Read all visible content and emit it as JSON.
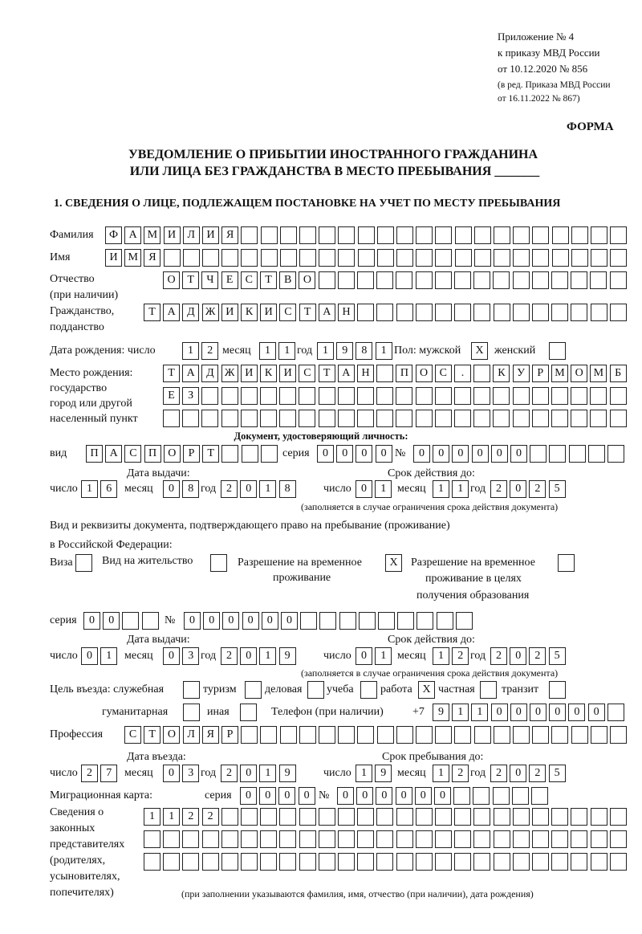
{
  "header": {
    "appendix": "Приложение № 4",
    "order": "к приказу МВД России",
    "order_date": "от 10.12.2020 № 856",
    "edition1": "(в ред. Приказа МВД России",
    "edition2": "от 16.11.2022 № 867)",
    "form_label": "ФОРМА",
    "title1": "УВЕДОМЛЕНИЕ О ПРИБЫТИИ ИНОСТРАННОГО ГРАЖДАНИНА",
    "title2": "ИЛИ ЛИЦА БЕЗ ГРАЖДАНСТВА В МЕСТО ПРЕБЫВАНИЯ _______",
    "section1": "1. СВЕДЕНИЯ О ЛИЦЕ, ПОДЛЕЖАЩЕМ ПОСТАНОВКЕ НА УЧЕТ ПО МЕСТУ ПРЕБЫВАНИЯ"
  },
  "person": {
    "surname_label": "Фамилия",
    "surname": "ФАМИЛИЯ",
    "name_label": "Имя",
    "name": "ИМЯ",
    "patronymic_label1": "Отчество",
    "patronymic_label2": "(при наличии)",
    "patronymic": "ОТЧЕСТВО",
    "citizenship_label1": "Гражданство,",
    "citizenship_label2": "подданство",
    "citizenship": "ТАДЖИКИСТАН",
    "birth_label": "Дата рождения:  число",
    "month_label": "месяц",
    "year_label": "год",
    "birth_day": "12",
    "birth_month": "11",
    "birth_year": "1981",
    "sex_label": "Пол: мужской",
    "male_mark": "X",
    "female_label": "женский",
    "female_mark": "",
    "birthplace_label1": "Место рождения:",
    "birthplace_label2": "государство",
    "birthplace_label3": "город или другой",
    "birthplace_label4": "населенный пункт",
    "birthplace1": "ТАДЖИКИСТАН ПОС. КУРМОМБ",
    "birthplace2": "ЕЗ",
    "birthplace3": ""
  },
  "id_doc": {
    "heading": "Документ, удостоверяющий личность:",
    "type_label": "вид",
    "type": "ПАСПОРТ",
    "series_label": "серия",
    "series": "0000",
    "number_label": "№",
    "number": "000000",
    "issue_label": "Дата выдачи:",
    "valid_label": "Срок действия до:",
    "day_label": "число",
    "month_label": "месяц",
    "year_label": "год",
    "issue_day": "16",
    "issue_month": "08",
    "issue_year": "2018",
    "valid_day": "01",
    "valid_month": "11",
    "valid_year": "2025",
    "note": "(заполняется в случае ограничения срока действия документа)"
  },
  "stay_doc": {
    "heading1": "Вид и реквизиты документа, подтверждающего право на пребывание (проживание)",
    "heading2": "в Российской Федерации:",
    "visa_label": "Виза",
    "visa_mark": "",
    "residence_label": "Вид на жительство",
    "residence_mark": "",
    "trp_label1": "Разрешение на временное",
    "trp_label2": "проживание",
    "trp_mark": "X",
    "trp_edu_label1": "Разрешение на временное",
    "trp_edu_label2": "проживание в целях",
    "trp_edu_label3": "получения образования",
    "trp_edu_mark": "",
    "series_label": "серия",
    "series": "00",
    "number_label": "№",
    "number": "000000",
    "issue_label": "Дата выдачи:",
    "valid_label": "Срок действия до:",
    "day_label": "число",
    "month_label": "месяц",
    "year_label": "год",
    "issue_day": "01",
    "issue_month": "03",
    "issue_year": "2019",
    "valid_day": "01",
    "valid_month": "12",
    "valid_year": "2025",
    "note": "(заполняется в случае ограничения срока действия документа)"
  },
  "purpose": {
    "label": "Цель въезда: служебная",
    "service_mark": "",
    "tourism_label": "туризм",
    "tourism_mark": "",
    "business_label": "деловая",
    "business_mark": "",
    "study_label": "учеба",
    "study_mark": "",
    "work_label": "работа",
    "work_mark": "X",
    "private_label": "частная",
    "private_mark": "",
    "transit_label": "транзит",
    "transit_mark": "",
    "humanitarian_label": "гуманитарная",
    "humanitarian_mark": "",
    "other_label": "иная",
    "other_mark": "",
    "phone_label": "Телефон (при наличии)",
    "phone_prefix": "+7",
    "phone": "911000000"
  },
  "profession": {
    "label": "Профессия",
    "value": "СТОЛЯР"
  },
  "entry": {
    "entry_label": "Дата въезда:",
    "stay_label": "Срок пребывания до:",
    "day_label": "число",
    "month_label": "месяц",
    "year_label": "год",
    "entry_day": "27",
    "entry_month": "03",
    "entry_year": "2019",
    "stay_day": "19",
    "stay_month": "12",
    "stay_year": "2025"
  },
  "migration_card": {
    "label": "Миграционная карта:",
    "series_label": "серия",
    "series": "0000",
    "number_label": "№",
    "number": "000000"
  },
  "representatives": {
    "label": [
      "Сведения о",
      "законных",
      "представителях",
      "(родителях,",
      "усыновителях,",
      "попечителях)"
    ],
    "row1": "1122",
    "row2": "",
    "row3": "",
    "note": "(при заполнении указываются фамилия, имя, отчество (при наличии), дата рождения)"
  }
}
